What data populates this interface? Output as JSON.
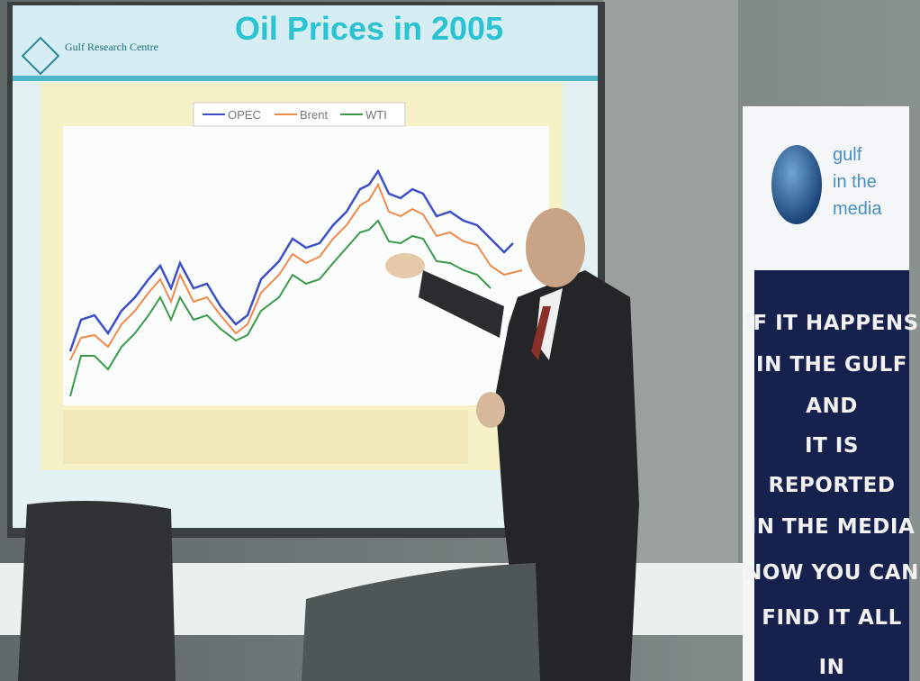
{
  "slide": {
    "logo_text": "Gulf Research Centre",
    "title": "Oil Prices in 2005",
    "legend": [
      "OPEC",
      "Brent",
      "WTI"
    ]
  },
  "banner": {
    "brand": [
      "gulf",
      "in the",
      "media"
    ],
    "slogan": [
      "IF IT HAPPENS",
      "IN THE GULF",
      "AND",
      "IT IS",
      "REPORTED",
      "IN THE MEDIA",
      "NOW YOU CAN",
      "FIND IT ALL",
      "IN"
    ]
  }
}
